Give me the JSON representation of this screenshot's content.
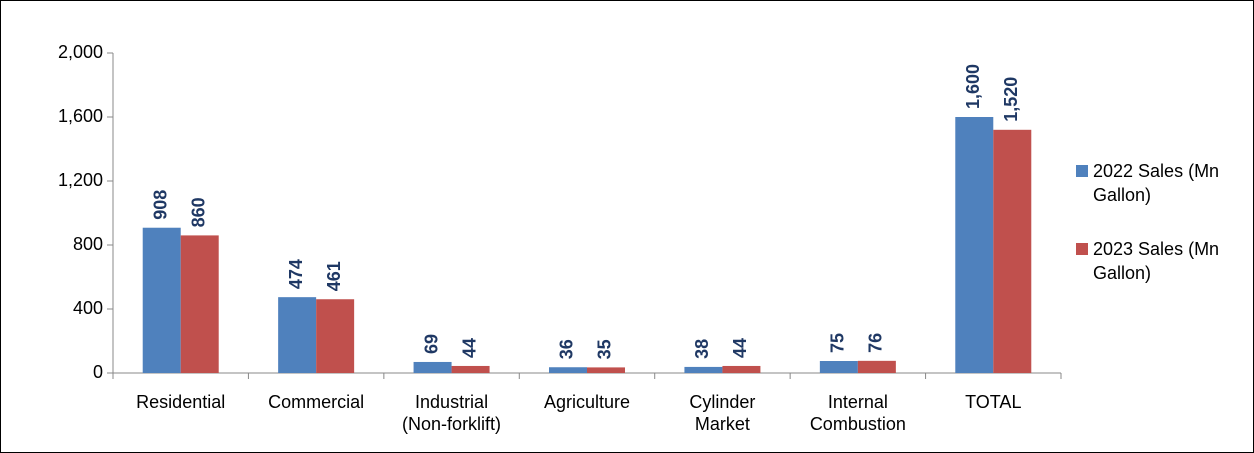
{
  "chart_data": {
    "type": "bar",
    "categories": [
      "Residential",
      "Commercial",
      "Industrial (Non-forklift)",
      "Agriculture",
      "Cylinder Market",
      "Internal Combustion",
      "TOTAL"
    ],
    "series": [
      {
        "name": "2022 Sales (Mn Gallon)",
        "color": "#4f81bd",
        "values": [
          908,
          474,
          69,
          36,
          38,
          75,
          1600
        ],
        "value_labels": [
          "908",
          "474",
          "69",
          "36",
          "38",
          "75",
          "1,600"
        ]
      },
      {
        "name": "2023 Sales (Mn Gallon)",
        "color": "#c0504d",
        "values": [
          860,
          461,
          44,
          35,
          44,
          76,
          1520
        ],
        "value_labels": [
          "860",
          "461",
          "44",
          "35",
          "44",
          "76",
          "1,520"
        ]
      }
    ],
    "ylim": [
      0,
      2000
    ],
    "yticks": [
      0,
      400,
      800,
      {
        "value": 1200,
        "label": "1,200"
      },
      {
        "value": 1600,
        "label": "1,600"
      },
      {
        "value": 2000,
        "label": "2,000"
      }
    ],
    "grid": false,
    "legend": "right",
    "value_label_color": "#1f3864"
  }
}
